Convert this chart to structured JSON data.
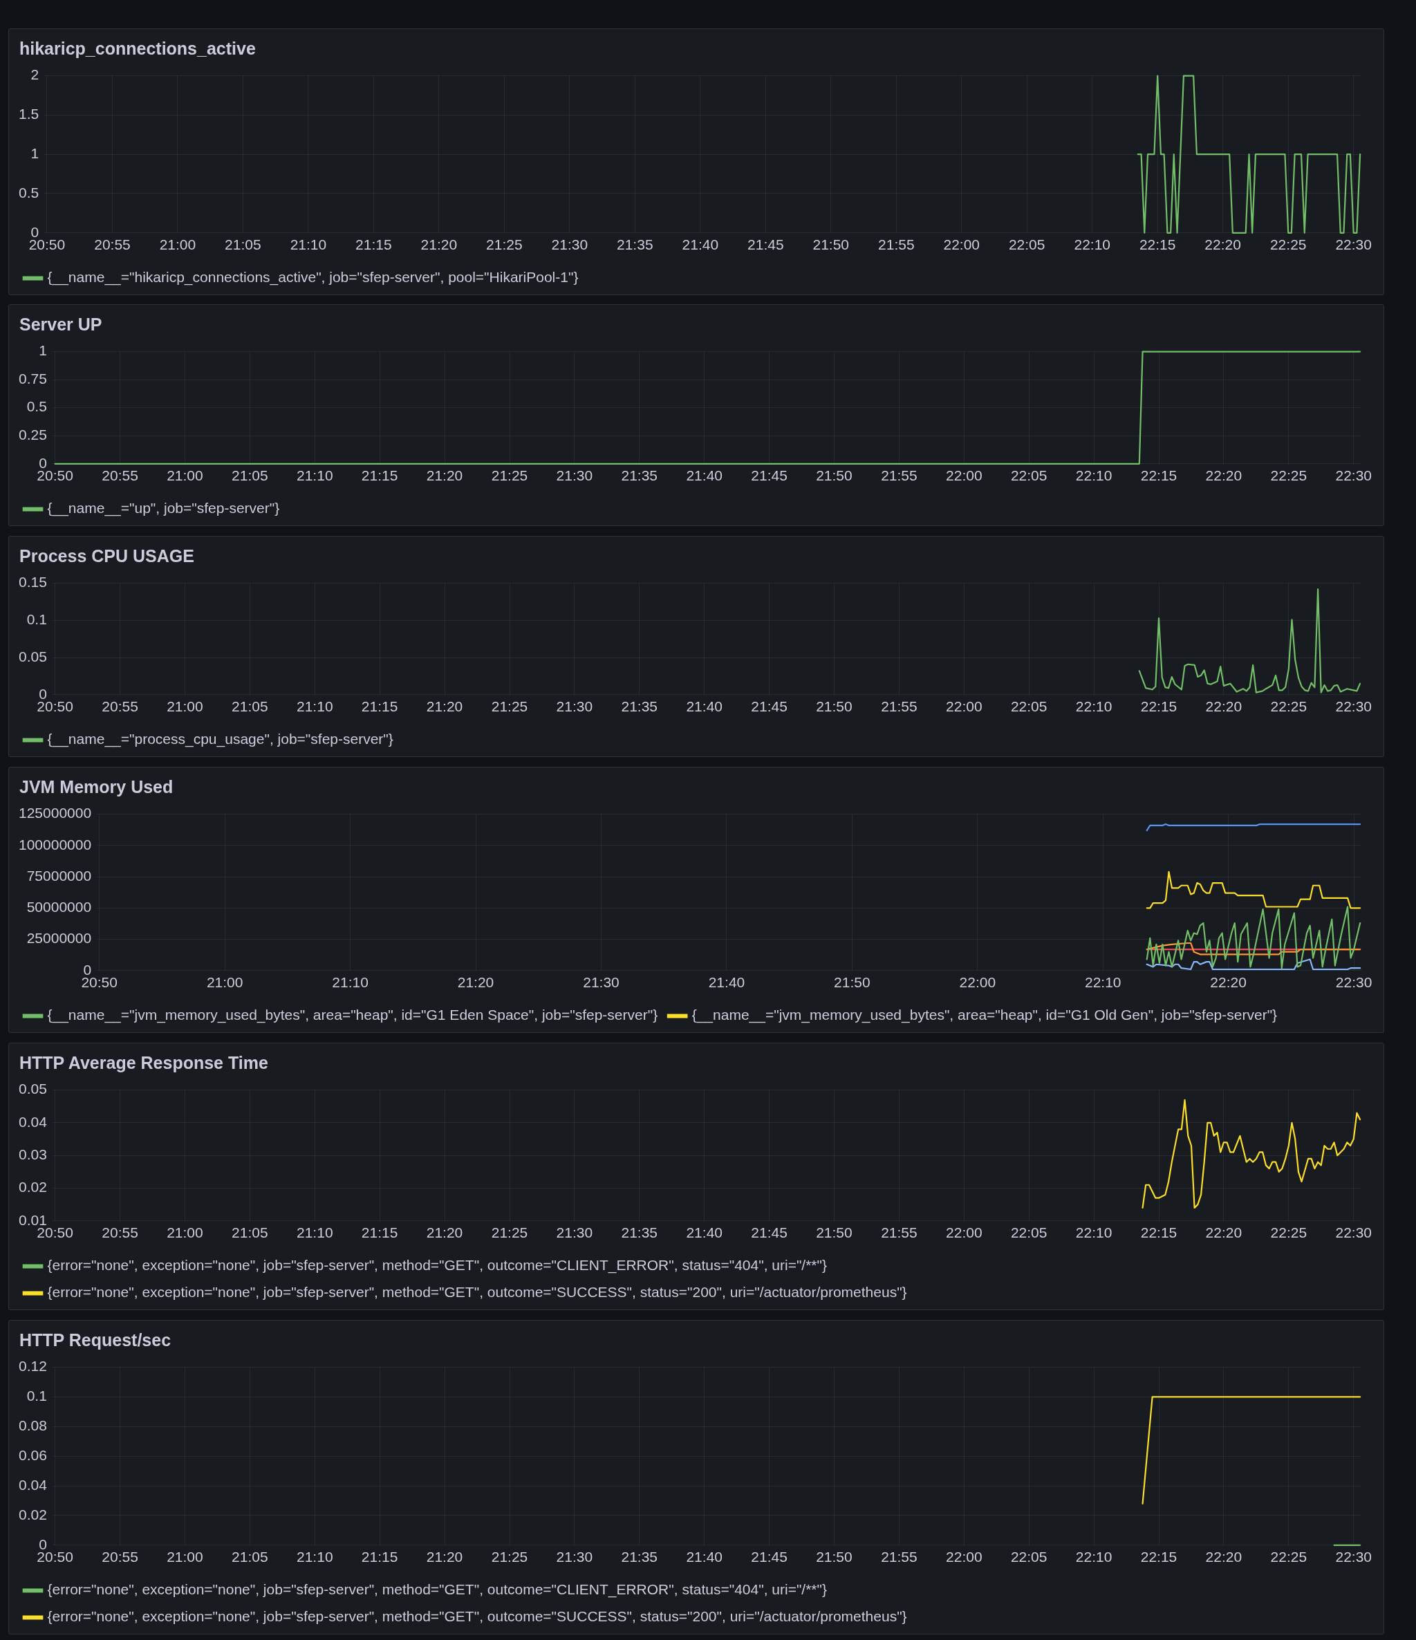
{
  "chart_data": [
    {
      "type": "line",
      "title": "hikaricp_connections_active",
      "grid": true,
      "legend": "bottom left",
      "marker": "none",
      "xlim": [
        20.83,
        22.51
      ],
      "ylim": [
        0,
        2
      ],
      "yticks": [
        0,
        0.5,
        1,
        1.5,
        2
      ],
      "xticks": [
        {
          "value": 20.8333,
          "label": "20:50"
        },
        {
          "value": 20.9167,
          "label": "20:55"
        },
        {
          "value": 21,
          "label": "21:00"
        },
        {
          "value": 21.0833,
          "label": "21:05"
        },
        {
          "value": 21.1667,
          "label": "21:10"
        },
        {
          "value": 21.25,
          "label": "21:15"
        },
        {
          "value": 21.3333,
          "label": "21:20"
        },
        {
          "value": 21.4167,
          "label": "21:25"
        },
        {
          "value": 21.5,
          "label": "21:30"
        },
        {
          "value": 21.5833,
          "label": "21:35"
        },
        {
          "value": 21.6667,
          "label": "21:40"
        },
        {
          "value": 21.75,
          "label": "21:45"
        },
        {
          "value": 21.8333,
          "label": "21:50"
        },
        {
          "value": 21.9167,
          "label": "21:55"
        },
        {
          "value": 22,
          "label": "22:00"
        },
        {
          "value": 22.0833,
          "label": "22:05"
        },
        {
          "value": 22.1667,
          "label": "22:10"
        },
        {
          "value": 22.25,
          "label": "22:15"
        },
        {
          "value": 22.3333,
          "label": "22:20"
        },
        {
          "value": 22.4167,
          "label": "22:25"
        },
        {
          "value": 22.5,
          "label": "22:30"
        }
      ],
      "series": [
        {
          "name": "{__name__=\"hikaricp_connections_active\", job=\"sfep-server\", pool=\"HikariPool-1\"}",
          "color": "#73bf69",
          "x": [
            22.225,
            22.2292,
            22.2333,
            22.2375,
            22.2458,
            22.25,
            22.2542,
            22.2583,
            22.2625,
            22.2667,
            22.2708,
            22.275,
            22.2833,
            22.2958,
            22.3,
            22.3417,
            22.3458,
            22.3625,
            22.3667,
            22.3708,
            22.375,
            22.4125,
            22.4167,
            22.4208,
            22.425,
            22.4333,
            22.4375,
            22.4417,
            22.4792,
            22.4833,
            22.4875,
            22.4917,
            22.4958,
            22.5,
            22.5042,
            22.5083
          ],
          "values": [
            1,
            1,
            0,
            1,
            1,
            2,
            1,
            1,
            0,
            0,
            1,
            0,
            2,
            2,
            1,
            1,
            0,
            0,
            1,
            0,
            1,
            1,
            0,
            0,
            1,
            1,
            0,
            1,
            1,
            0,
            0,
            1,
            1,
            0,
            0,
            1
          ]
        }
      ]
    },
    {
      "type": "line",
      "title": "Server UP",
      "grid": true,
      "legend": "bottom left",
      "marker": "none",
      "xlim": [
        20.83,
        22.51
      ],
      "ylim": [
        0,
        1
      ],
      "yticks": [
        0,
        0.25,
        0.5,
        0.75,
        1
      ],
      "xticks": [
        {
          "value": 20.8333,
          "label": "20:50"
        },
        {
          "value": 20.9167,
          "label": "20:55"
        },
        {
          "value": 21,
          "label": "21:00"
        },
        {
          "value": 21.0833,
          "label": "21:05"
        },
        {
          "value": 21.1667,
          "label": "21:10"
        },
        {
          "value": 21.25,
          "label": "21:15"
        },
        {
          "value": 21.3333,
          "label": "21:20"
        },
        {
          "value": 21.4167,
          "label": "21:25"
        },
        {
          "value": 21.5,
          "label": "21:30"
        },
        {
          "value": 21.5833,
          "label": "21:35"
        },
        {
          "value": 21.6667,
          "label": "21:40"
        },
        {
          "value": 21.75,
          "label": "21:45"
        },
        {
          "value": 21.8333,
          "label": "21:50"
        },
        {
          "value": 21.9167,
          "label": "21:55"
        },
        {
          "value": 22,
          "label": "22:00"
        },
        {
          "value": 22.0833,
          "label": "22:05"
        },
        {
          "value": 22.1667,
          "label": "22:10"
        },
        {
          "value": 22.25,
          "label": "22:15"
        },
        {
          "value": 22.3333,
          "label": "22:20"
        },
        {
          "value": 22.4167,
          "label": "22:25"
        },
        {
          "value": 22.5,
          "label": "22:30"
        }
      ],
      "series": [
        {
          "name": "{__name__=\"up\", job=\"sfep-server\"}",
          "color": "#73bf69",
          "x": [
            20.8333,
            22.225,
            22.2292,
            22.5083
          ],
          "values": [
            0,
            0,
            1,
            1
          ]
        }
      ]
    },
    {
      "type": "line",
      "title": "Process CPU USAGE",
      "grid": true,
      "legend": "bottom left",
      "marker": "none",
      "xlim": [
        20.83,
        22.51
      ],
      "ylim": [
        0,
        0.15
      ],
      "yticks": [
        0,
        0.05,
        0.1,
        0.15
      ],
      "xticks": [
        {
          "value": 20.8333,
          "label": "20:50"
        },
        {
          "value": 20.9167,
          "label": "20:55"
        },
        {
          "value": 21,
          "label": "21:00"
        },
        {
          "value": 21.0833,
          "label": "21:05"
        },
        {
          "value": 21.1667,
          "label": "21:10"
        },
        {
          "value": 21.25,
          "label": "21:15"
        },
        {
          "value": 21.3333,
          "label": "21:20"
        },
        {
          "value": 21.4167,
          "label": "21:25"
        },
        {
          "value": 21.5,
          "label": "21:30"
        },
        {
          "value": 21.5833,
          "label": "21:35"
        },
        {
          "value": 21.6667,
          "label": "21:40"
        },
        {
          "value": 21.75,
          "label": "21:45"
        },
        {
          "value": 21.8333,
          "label": "21:50"
        },
        {
          "value": 21.9167,
          "label": "21:55"
        },
        {
          "value": 22,
          "label": "22:00"
        },
        {
          "value": 22.0833,
          "label": "22:05"
        },
        {
          "value": 22.1667,
          "label": "22:10"
        },
        {
          "value": 22.25,
          "label": "22:15"
        },
        {
          "value": 22.3333,
          "label": "22:20"
        },
        {
          "value": 22.4167,
          "label": "22:25"
        },
        {
          "value": 22.5,
          "label": "22:30"
        }
      ],
      "series": [
        {
          "name": "{__name__=\"process_cpu_usage\", job=\"sfep-server\"}",
          "color": "#73bf69",
          "x": [
            22.225,
            22.2333,
            22.2417,
            22.2458,
            22.25,
            22.2542,
            22.2583,
            22.2625,
            22.2667,
            22.2708,
            22.2792,
            22.2833,
            22.2875,
            22.2958,
            22.3,
            22.3042,
            22.3083,
            22.3125,
            22.3167,
            22.325,
            22.3292,
            22.3333,
            22.3417,
            22.35,
            22.3583,
            22.3625,
            22.3667,
            22.3708,
            22.375,
            22.3833,
            22.3875,
            22.3958,
            22.4,
            22.4042,
            22.4083,
            22.4125,
            22.4167,
            22.4208,
            22.425,
            22.4292,
            22.4333,
            22.4375,
            22.4417,
            22.4458,
            22.45,
            22.4542,
            22.4583,
            22.4625,
            22.4667,
            22.4708,
            22.475,
            22.4792,
            22.4833,
            22.4917,
            22.5042,
            22.5083
          ],
          "values": [
            0.032,
            0.009,
            0.007,
            0.011,
            0.103,
            0.023,
            0.01,
            0.009,
            0.024,
            0.014,
            0.007,
            0.039,
            0.041,
            0.04,
            0.024,
            0.026,
            0.033,
            0.015,
            0.014,
            0.018,
            0.038,
            0.012,
            0.015,
            0.004,
            0.008,
            0.005,
            0.01,
            0.04,
            0.003,
            0.005,
            0.008,
            0.013,
            0.026,
            0.006,
            0.006,
            0.01,
            0.035,
            0.101,
            0.047,
            0.023,
            0.011,
            0.006,
            0.005,
            0.016,
            0.01,
            0.142,
            0.003,
            0.013,
            0.005,
            0.006,
            0.012,
            0.013,
            0.004,
            0.008,
            0.005,
            0.015
          ]
        }
      ]
    },
    {
      "type": "line",
      "title": "JVM Memory Used",
      "grid": true,
      "legend": "bottom left",
      "marker": "none",
      "xlim": [
        20.83,
        22.51
      ],
      "ylim": [
        0,
        125000000
      ],
      "yticks": [
        0,
        25000000,
        50000000,
        75000000,
        100000000,
        125000000
      ],
      "xticks": [
        {
          "value": 20.8333,
          "label": "20:50"
        },
        {
          "value": 21,
          "label": "21:00"
        },
        {
          "value": 21.1667,
          "label": "21:10"
        },
        {
          "value": 21.3333,
          "label": "21:20"
        },
        {
          "value": 21.5,
          "label": "21:30"
        },
        {
          "value": 21.6667,
          "label": "21:40"
        },
        {
          "value": 21.8333,
          "label": "21:50"
        },
        {
          "value": 22,
          "label": "22:00"
        },
        {
          "value": 22.1667,
          "label": "22:10"
        },
        {
          "value": 22.3333,
          "label": "22:20"
        },
        {
          "value": 22.5,
          "label": "22:30"
        }
      ],
      "series": [
        {
          "name": "{__name__=\"jvm_memory_used_bytes\", area=\"heap\", id=\"G1 Eden Space\", job=\"sfep-server\"}",
          "color": "#73bf69",
          "x": [
            22.225,
            22.2292,
            22.2333,
            22.2375,
            22.2417,
            22.2458,
            22.25,
            22.2542,
            22.2583,
            22.2667,
            22.2708,
            22.2792,
            22.2833,
            22.2875,
            22.2917,
            22.2958,
            22.3,
            22.3042,
            22.3083,
            22.3125,
            22.3167,
            22.3208,
            22.325,
            22.3292,
            22.3375,
            22.3417,
            22.3458,
            22.35,
            22.3583,
            22.3625,
            22.3667,
            22.3792,
            22.3875,
            22.3917,
            22.4,
            22.4042,
            22.4083,
            22.4208,
            22.425,
            22.4292,
            22.4375,
            22.4417,
            22.4458,
            22.4542,
            22.4583,
            22.4625,
            22.4708,
            22.475,
            22.4833,
            22.4917,
            22.4958,
            22.5,
            22.5083
          ],
          "values": [
            9000000,
            26000000,
            4000000,
            21000000,
            6000000,
            21000000,
            4000000,
            15000000,
            3000000,
            24000000,
            9000000,
            32000000,
            24000000,
            30000000,
            29000000,
            36000000,
            38000000,
            15000000,
            24000000,
            3000000,
            10000000,
            26000000,
            30000000,
            9000000,
            30000000,
            38000000,
            7000000,
            29000000,
            38000000,
            3000000,
            13000000,
            49000000,
            10000000,
            30000000,
            49000000,
            2000000,
            21000000,
            46000000,
            3000000,
            4000000,
            30000000,
            36000000,
            10000000,
            32000000,
            3000000,
            17000000,
            41000000,
            4000000,
            29000000,
            51000000,
            10000000,
            17000000,
            38000000
          ]
        },
        {
          "name": "{__name__=\"jvm_memory_used_bytes\", area=\"heap\", id=\"G1 Old Gen\", job=\"sfep-server\"}",
          "color": "#fade2a",
          "x": [
            22.225,
            22.2292,
            22.2333,
            22.2458,
            22.25,
            22.2542,
            22.2583,
            22.2667,
            22.2708,
            22.2792,
            22.2833,
            22.2875,
            22.2917,
            22.2958,
            22.3,
            22.3042,
            22.3083,
            22.3125,
            22.325,
            22.3292,
            22.3417,
            22.3458,
            22.3792,
            22.3833,
            22.425,
            22.4292,
            22.4417,
            22.4458,
            22.4542,
            22.4583,
            22.4917,
            22.4958,
            22.5083
          ],
          "values": [
            50000000,
            50000000,
            54000000,
            54000000,
            56000000,
            79000000,
            66000000,
            66000000,
            68000000,
            68000000,
            61000000,
            62000000,
            70000000,
            69000000,
            64000000,
            62000000,
            62000000,
            70000000,
            70000000,
            62000000,
            62000000,
            60000000,
            60000000,
            51000000,
            51000000,
            57000000,
            57000000,
            68000000,
            68000000,
            58000000,
            58000000,
            50000000,
            50000000
          ]
        },
        {
          "color": "#5794f2",
          "x": [
            22.225,
            22.2292,
            22.2458,
            22.25,
            22.2542,
            22.3708,
            22.375,
            22.5083
          ],
          "values": [
            112000000,
            116000000,
            116000000,
            117000000,
            116000000,
            116000000,
            117000000,
            117000000
          ]
        },
        {
          "color": "#ff9830",
          "x": [
            22.225,
            22.2458,
            22.2583,
            22.2792,
            22.2833,
            22.2875,
            22.2958,
            22.4,
            22.4042,
            22.425,
            22.4292,
            22.5083
          ],
          "values": [
            17000000,
            20000000,
            21000000,
            22000000,
            22000000,
            15000000,
            13000000,
            13000000,
            15000000,
            15000000,
            17000000,
            17000000
          ]
        },
        {
          "color": "#f2495c",
          "x": [
            22.225,
            22.5083
          ],
          "values": [
            17000000,
            17000000
          ]
        },
        {
          "color": "#8ab8ff",
          "x": [
            22.225,
            22.2333,
            22.2375,
            22.2542,
            22.2583,
            22.2625,
            22.2667,
            22.2708,
            22.2833,
            22.2875,
            22.2917,
            22.2958,
            22.3042,
            22.3083,
            22.3125,
            22.4208,
            22.425,
            22.4417,
            22.4458,
            22.4917,
            22.4958,
            22.5083
          ],
          "values": [
            5000000,
            3000000,
            5000000,
            4000000,
            3000000,
            5000000,
            5000000,
            2000000,
            1000000,
            7000000,
            7000000,
            5000000,
            7000000,
            7000000,
            1000000,
            1000000,
            6000000,
            9000000,
            1000000,
            1000000,
            2000000,
            2000000
          ]
        }
      ]
    },
    {
      "type": "line",
      "title": "HTTP Average Response Time",
      "grid": true,
      "legend": "bottom left",
      "marker": "none",
      "xlim": [
        20.83,
        22.51
      ],
      "ylim": [
        0.01,
        0.05
      ],
      "yticks": [
        0.01,
        0.02,
        0.03,
        0.04,
        0.05
      ],
      "xticks": [
        {
          "value": 20.8333,
          "label": "20:50"
        },
        {
          "value": 20.9167,
          "label": "20:55"
        },
        {
          "value": 21,
          "label": "21:00"
        },
        {
          "value": 21.0833,
          "label": "21:05"
        },
        {
          "value": 21.1667,
          "label": "21:10"
        },
        {
          "value": 21.25,
          "label": "21:15"
        },
        {
          "value": 21.3333,
          "label": "21:20"
        },
        {
          "value": 21.4167,
          "label": "21:25"
        },
        {
          "value": 21.5,
          "label": "21:30"
        },
        {
          "value": 21.5833,
          "label": "21:35"
        },
        {
          "value": 21.6667,
          "label": "21:40"
        },
        {
          "value": 21.75,
          "label": "21:45"
        },
        {
          "value": 21.8333,
          "label": "21:50"
        },
        {
          "value": 21.9167,
          "label": "21:55"
        },
        {
          "value": 22,
          "label": "22:00"
        },
        {
          "value": 22.0833,
          "label": "22:05"
        },
        {
          "value": 22.1667,
          "label": "22:10"
        },
        {
          "value": 22.25,
          "label": "22:15"
        },
        {
          "value": 22.3333,
          "label": "22:20"
        },
        {
          "value": 22.4167,
          "label": "22:25"
        },
        {
          "value": 22.5,
          "label": "22:30"
        }
      ],
      "series": [
        {
          "name": "{error=\"none\", exception=\"none\", job=\"sfep-server\", method=\"GET\", outcome=\"CLIENT_ERROR\", status=\"404\", uri=\"/**\"}",
          "color": "#73bf69"
        },
        {
          "name": "{error=\"none\", exception=\"none\", job=\"sfep-server\", method=\"GET\", outcome=\"SUCCESS\", status=\"200\", uri=\"/actuator/prometheus\"}",
          "color": "#fade2a",
          "x": [
            22.2292,
            22.2333,
            22.2375,
            22.2458,
            22.25,
            22.2583,
            22.2625,
            22.2667,
            22.275,
            22.2792,
            22.2833,
            22.2875,
            22.2917,
            22.2958,
            22.3,
            22.3042,
            22.3083,
            22.3125,
            22.3167,
            22.3208,
            22.325,
            22.3292,
            22.3333,
            22.3375,
            22.3417,
            22.3458,
            22.3542,
            22.3583,
            22.3625,
            22.3667,
            22.3708,
            22.375,
            22.3792,
            22.3833,
            22.3875,
            22.3917,
            22.3958,
            22.4,
            22.4042,
            22.4083,
            22.4125,
            22.4167,
            22.4208,
            22.425,
            22.4292,
            22.4333,
            22.4417,
            22.4458,
            22.45,
            22.4542,
            22.4583,
            22.4625,
            22.4667,
            22.4708,
            22.475,
            22.4792,
            22.4875,
            22.4917,
            22.4958,
            22.5,
            22.5042,
            22.5083
          ],
          "values": [
            0.014,
            0.021,
            0.021,
            0.017,
            0.017,
            0.018,
            0.022,
            0.028,
            0.038,
            0.038,
            0.047,
            0.036,
            0.033,
            0.014,
            0.015,
            0.018,
            0.028,
            0.04,
            0.04,
            0.036,
            0.037,
            0.031,
            0.034,
            0.034,
            0.031,
            0.031,
            0.036,
            0.032,
            0.028,
            0.029,
            0.028,
            0.029,
            0.031,
            0.031,
            0.027,
            0.026,
            0.028,
            0.028,
            0.025,
            0.026,
            0.029,
            0.033,
            0.04,
            0.035,
            0.025,
            0.022,
            0.029,
            0.029,
            0.026,
            0.028,
            0.027,
            0.033,
            0.032,
            0.032,
            0.034,
            0.03,
            0.032,
            0.034,
            0.033,
            0.035,
            0.043,
            0.041
          ]
        }
      ]
    },
    {
      "type": "line",
      "title": "HTTP Request/sec",
      "grid": true,
      "legend": "bottom left",
      "marker": "none",
      "xlim": [
        20.83,
        22.51
      ],
      "ylim": [
        0,
        0.12
      ],
      "yticks": [
        0,
        0.02,
        0.04,
        0.06,
        0.08,
        0.1,
        0.12
      ],
      "xticks": [
        {
          "value": 20.8333,
          "label": "20:50"
        },
        {
          "value": 20.9167,
          "label": "20:55"
        },
        {
          "value": 21,
          "label": "21:00"
        },
        {
          "value": 21.0833,
          "label": "21:05"
        },
        {
          "value": 21.1667,
          "label": "21:10"
        },
        {
          "value": 21.25,
          "label": "21:15"
        },
        {
          "value": 21.3333,
          "label": "21:20"
        },
        {
          "value": 21.4167,
          "label": "21:25"
        },
        {
          "value": 21.5,
          "label": "21:30"
        },
        {
          "value": 21.5833,
          "label": "21:35"
        },
        {
          "value": 21.6667,
          "label": "21:40"
        },
        {
          "value": 21.75,
          "label": "21:45"
        },
        {
          "value": 21.8333,
          "label": "21:50"
        },
        {
          "value": 21.9167,
          "label": "21:55"
        },
        {
          "value": 22,
          "label": "22:00"
        },
        {
          "value": 22.0833,
          "label": "22:05"
        },
        {
          "value": 22.1667,
          "label": "22:10"
        },
        {
          "value": 22.25,
          "label": "22:15"
        },
        {
          "value": 22.3333,
          "label": "22:20"
        },
        {
          "value": 22.4167,
          "label": "22:25"
        },
        {
          "value": 22.5,
          "label": "22:30"
        }
      ],
      "series": [
        {
          "name": "{error=\"none\", exception=\"none\", job=\"sfep-server\", method=\"GET\", outcome=\"CLIENT_ERROR\", status=\"404\", uri=\"/**\"}",
          "color": "#73bf69",
          "x": [
            22.475,
            22.5083
          ],
          "values": [
            0,
            0
          ]
        },
        {
          "name": "{error=\"none\", exception=\"none\", job=\"sfep-server\", method=\"GET\", outcome=\"SUCCESS\", status=\"200\", uri=\"/actuator/prometheus\"}",
          "color": "#fade2a",
          "x": [
            22.2292,
            22.2417,
            22.5083
          ],
          "values": [
            0.028,
            0.1,
            0.1
          ]
        }
      ]
    }
  ]
}
